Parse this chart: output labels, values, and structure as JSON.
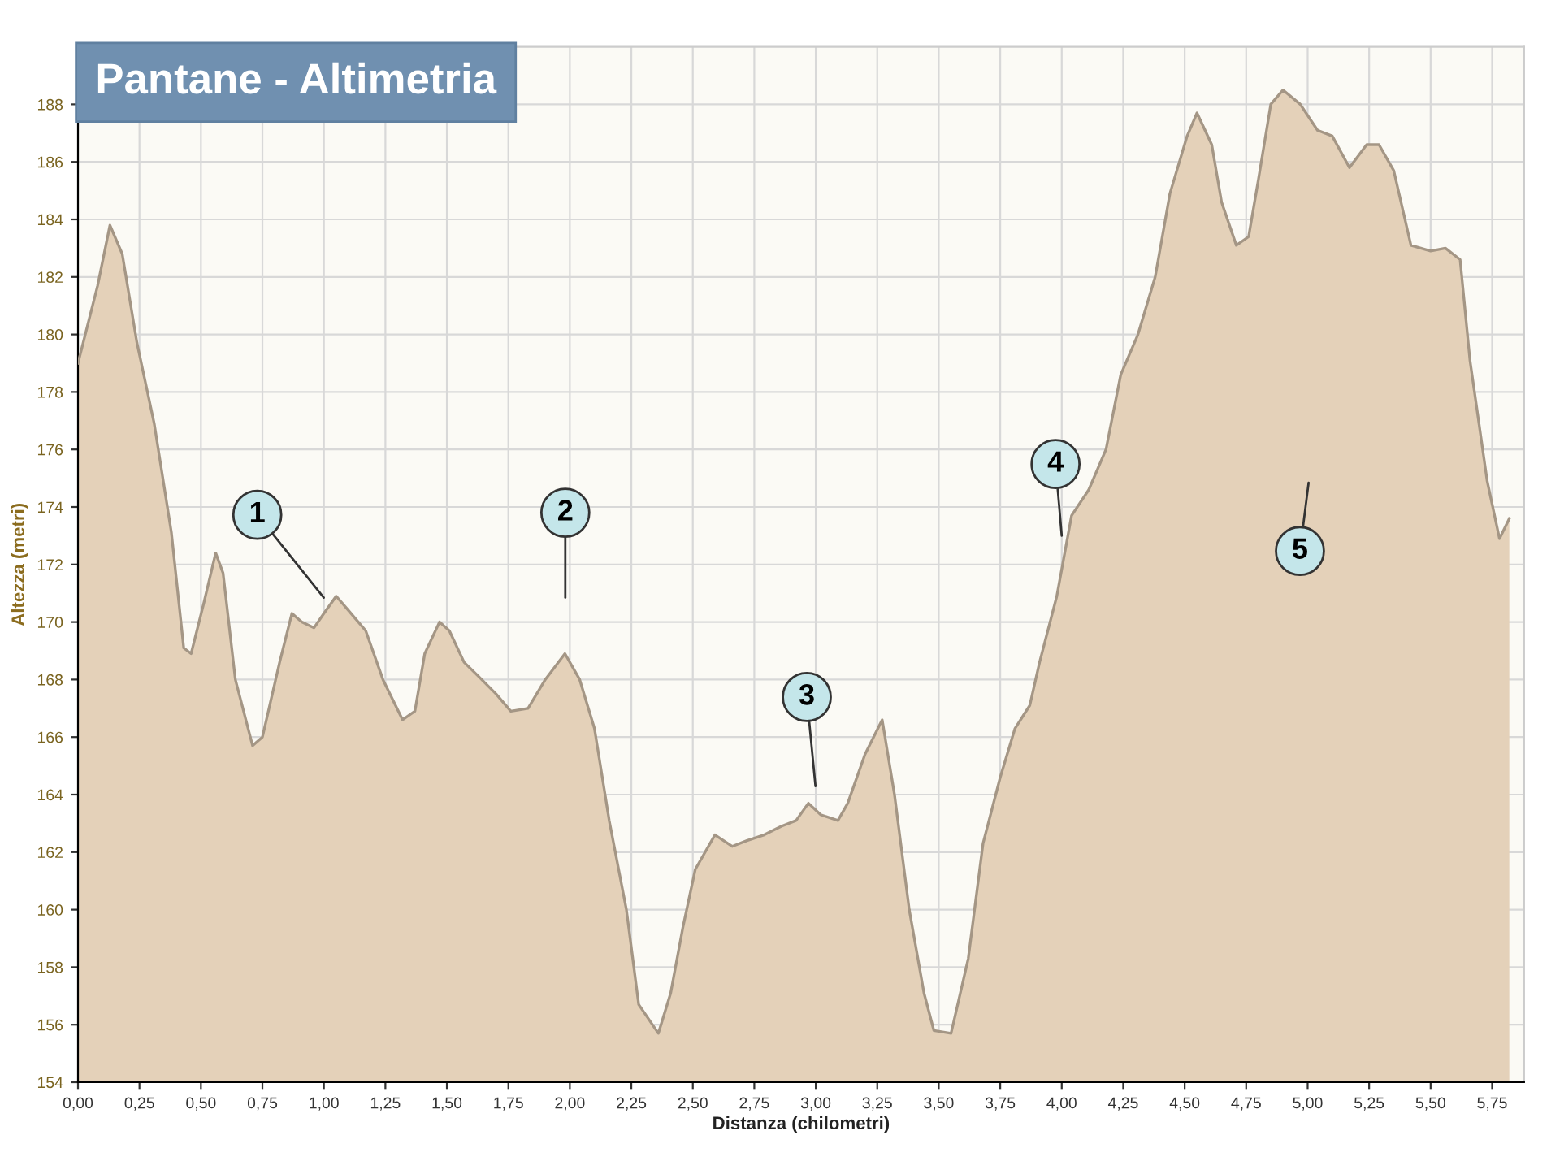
{
  "chart_data": {
    "type": "area",
    "title": "Pantane - Altimetria",
    "xlabel": "Distanza (chilometri)",
    "ylabel": "Altezza (metri)",
    "x": [
      0,
      0.08,
      0.13,
      0.18,
      0.24,
      0.31,
      0.38,
      0.43,
      0.46,
      0.51,
      0.56,
      0.59,
      0.64,
      0.71,
      0.75,
      0.82,
      0.87,
      0.91,
      0.96,
      1.0,
      1.05,
      1.1,
      1.17,
      1.24,
      1.32,
      1.37,
      1.41,
      1.47,
      1.51,
      1.57,
      1.63,
      1.7,
      1.76,
      1.83,
      1.9,
      1.98,
      2.04,
      2.1,
      2.16,
      2.23,
      2.28,
      2.36,
      2.41,
      2.46,
      2.51,
      2.59,
      2.66,
      2.72,
      2.79,
      2.86,
      2.92,
      2.97,
      3.02,
      3.09,
      3.13,
      3.2,
      3.27,
      3.32,
      3.38,
      3.44,
      3.48,
      3.55,
      3.62,
      3.68,
      3.75,
      3.81,
      3.87,
      3.91,
      3.98,
      4.04,
      4.11,
      4.18,
      4.24,
      4.31,
      4.38,
      4.44,
      4.51,
      4.55,
      4.61,
      4.65,
      4.71,
      4.76,
      4.8,
      4.85,
      4.9,
      4.97,
      5.04,
      5.1,
      5.17,
      5.24,
      5.29,
      5.35,
      5.42,
      5.5,
      5.56,
      5.62,
      5.66,
      5.73,
      5.78,
      5.82
    ],
    "series": [
      {
        "color": "#e4d1b9",
        "values": [
          179.0,
          181.7,
          183.8,
          182.8,
          179.7,
          176.9,
          173.1,
          169.1,
          168.9,
          170.6,
          172.4,
          171.7,
          168.0,
          165.7,
          166.0,
          168.6,
          170.3,
          170.0,
          169.8,
          170.3,
          170.9,
          170.4,
          169.7,
          168.0,
          166.6,
          166.9,
          168.9,
          170.0,
          169.7,
          168.6,
          168.1,
          167.5,
          166.9,
          167.0,
          168.0,
          168.9,
          168.0,
          166.3,
          163.1,
          160.0,
          156.7,
          155.7,
          157.1,
          159.4,
          161.4,
          162.6,
          162.2,
          162.4,
          162.6,
          162.9,
          163.1,
          163.7,
          163.3,
          163.1,
          163.7,
          165.4,
          166.6,
          164.0,
          160.0,
          157.1,
          155.8,
          155.7,
          158.3,
          162.3,
          164.6,
          166.3,
          167.1,
          168.6,
          170.9,
          173.7,
          174.6,
          176.0,
          178.6,
          180.0,
          182.0,
          184.9,
          186.9,
          187.7,
          186.6,
          184.6,
          183.1,
          183.4,
          185.4,
          188.0,
          188.5,
          188.0,
          187.1,
          186.9,
          185.8,
          186.6,
          186.6,
          185.7,
          183.1,
          182.9,
          183.0,
          182.6,
          179.1,
          174.9,
          172.9,
          173.6
        ]
      }
    ],
    "xlim": [
      0,
      5.88
    ],
    "ylim": [
      154,
      190
    ],
    "xticks": [
      {
        "value": 0,
        "label": "0,00"
      },
      {
        "value": 0.25,
        "label": "0,25"
      },
      {
        "value": 0.5,
        "label": "0,50"
      },
      {
        "value": 0.75,
        "label": "0,75"
      },
      {
        "value": 1,
        "label": "1,00"
      },
      {
        "value": 1.25,
        "label": "1,25"
      },
      {
        "value": 1.5,
        "label": "1,50"
      },
      {
        "value": 1.75,
        "label": "1,75"
      },
      {
        "value": 2,
        "label": "2,00"
      },
      {
        "value": 2.25,
        "label": "2,25"
      },
      {
        "value": 2.5,
        "label": "2,50"
      },
      {
        "value": 2.75,
        "label": "2,75"
      },
      {
        "value": 3,
        "label": "3,00"
      },
      {
        "value": 3.25,
        "label": "3,25"
      },
      {
        "value": 3.5,
        "label": "3,50"
      },
      {
        "value": 3.75,
        "label": "3,75"
      },
      {
        "value": 4,
        "label": "4,00"
      },
      {
        "value": 4.25,
        "label": "4,25"
      },
      {
        "value": 4.5,
        "label": "4,50"
      },
      {
        "value": 4.75,
        "label": "4,75"
      },
      {
        "value": 5,
        "label": "5,00"
      },
      {
        "value": 5.25,
        "label": "5,25"
      },
      {
        "value": 5.5,
        "label": "5,50"
      },
      {
        "value": 5.75,
        "label": "5,75"
      }
    ],
    "yticks": [
      154,
      156,
      158,
      160,
      162,
      164,
      166,
      168,
      170,
      172,
      174,
      176,
      178,
      180,
      182,
      184,
      186,
      188
    ],
    "grid": true,
    "annotations": [
      "1",
      "2",
      "3",
      {
        "text": "4",
        "x": 4.0,
        "y": 173.0
      },
      "5"
    ]
  }
}
